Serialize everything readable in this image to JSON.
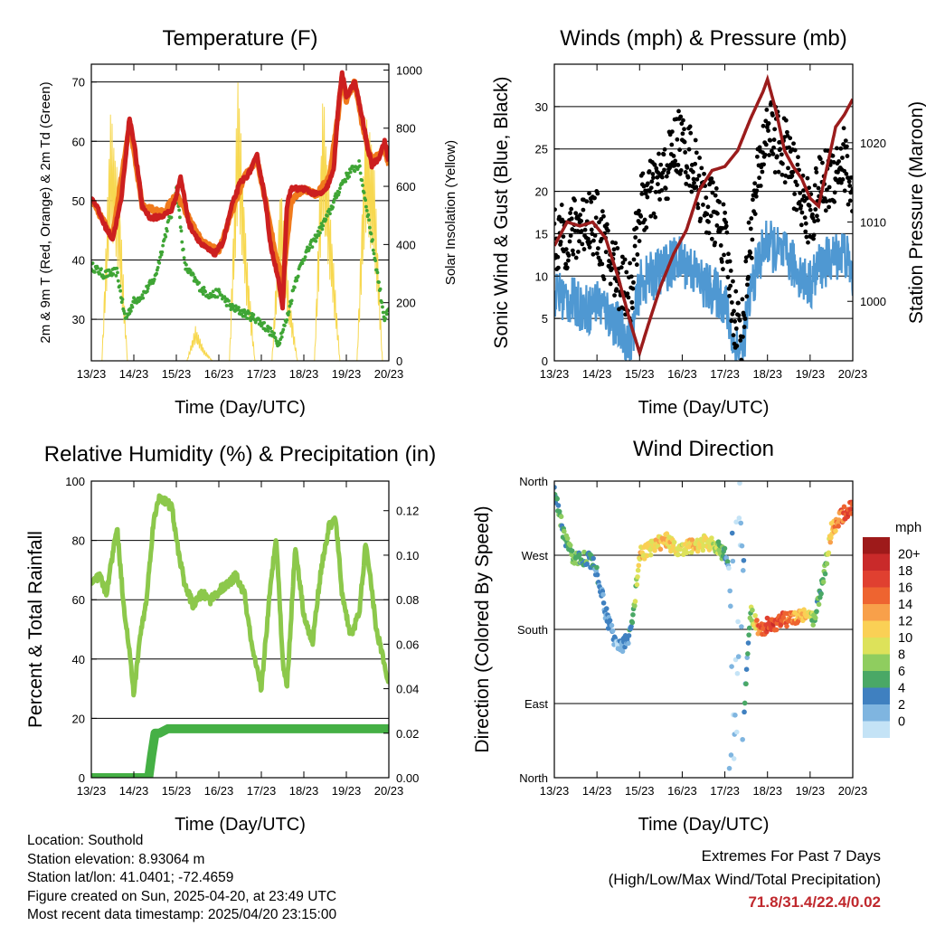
{
  "info": {
    "location": "Location: Southold",
    "elevation": "Station elevation: 8.93064 m",
    "latlon": "Station lat/lon: 41.0401; -72.4659",
    "created": "Figure created on Sun, 2025-04-20, at 23:49 UTC",
    "recent": "Most recent data timestamp: 2025/04/20 23:15:00"
  },
  "extremes": {
    "title": "Extremes For Past 7 Days",
    "subtitle": "(High/Low/Max Wind/Total Precipitation)",
    "values": "71.8/31.4/22.4/0.02"
  },
  "chart_data": [
    {
      "type": "line",
      "title": "Temperature (F)",
      "xlabel": "Time (Day/UTC)",
      "ylabel": "2m & 9m T (Red, Orange) & 2m Td (Green)",
      "ylabel_right": "Solar Insolation (Yellow)",
      "x_ticks": [
        "13/23",
        "14/23",
        "15/23",
        "16/23",
        "17/23",
        "18/23",
        "19/23",
        "20/23"
      ],
      "ylim": [
        23,
        73
      ],
      "y_ticks": [
        30,
        40,
        50,
        60,
        70
      ],
      "ylim_right": [
        0,
        1020
      ],
      "y_ticks_right": [
        0,
        200,
        400,
        600,
        800,
        1000
      ],
      "grid": "horizontal",
      "series": [
        {
          "name": "2m T",
          "color": "#cc1f1f",
          "x": [
            0,
            0.1,
            0.3,
            0.5,
            0.7,
            0.9,
            1.0,
            1.2,
            1.4,
            1.7,
            1.9,
            2.0,
            2.1,
            2.3,
            2.6,
            2.9,
            3.1,
            3.3,
            3.5,
            3.7,
            3.9,
            4.1,
            4.2,
            4.4,
            4.5,
            4.6,
            4.7,
            5.0,
            5.3,
            5.5,
            5.7,
            5.8,
            5.9,
            6.0,
            6.2,
            6.4,
            6.5,
            6.6,
            6.75,
            6.9,
            7.0
          ],
          "y": [
            50.5,
            49.5,
            46,
            43.5,
            50,
            64,
            60,
            49,
            47,
            47.5,
            48.5,
            51,
            54,
            46,
            42.5,
            41,
            43,
            49,
            53,
            54.5,
            57.5,
            50,
            43,
            37,
            31.5,
            49,
            52,
            52,
            51,
            51.5,
            55,
            65,
            71.5,
            67.5,
            70,
            63,
            59,
            56,
            57,
            60,
            56.5
          ]
        },
        {
          "name": "9m T",
          "color": "#f07a1c",
          "x": [
            0,
            0.5,
            0.9,
            1.2,
            1.7,
            2.0,
            2.3,
            2.6,
            3.0,
            3.3,
            3.6,
            3.9,
            4.1,
            4.3,
            4.5,
            4.7,
            5.0,
            5.3,
            5.6,
            5.8,
            5.9,
            6.0,
            6.2,
            6.4,
            6.6,
            6.9,
            7.0
          ],
          "y": [
            50,
            44,
            63,
            49,
            48,
            51,
            47,
            43,
            41.5,
            48,
            54,
            57,
            50,
            42,
            36,
            50,
            52,
            51,
            54,
            64,
            71,
            67,
            70,
            62,
            56.5,
            59,
            56
          ]
        },
        {
          "name": "2m Td",
          "color": "#3fa535",
          "x": [
            0,
            0.3,
            0.6,
            0.8,
            1.0,
            1.2,
            1.5,
            1.8,
            1.9,
            2.0,
            2.2,
            2.4,
            2.6,
            2.8,
            3.0,
            3.3,
            3.6,
            3.9,
            4.2,
            4.4,
            4.6,
            4.8,
            5.0,
            5.3,
            5.6,
            5.9,
            6.1,
            6.3,
            6.4,
            6.5,
            6.7,
            6.9,
            7.0
          ],
          "y": [
            39,
            37.5,
            38,
            30,
            33,
            34,
            37,
            46,
            48,
            52.5,
            39,
            37,
            35,
            34,
            34.5,
            32,
            31,
            30,
            28,
            26,
            30,
            36.5,
            40.5,
            44,
            48,
            53,
            55,
            56,
            52,
            48,
            39,
            30,
            31.5
          ]
        }
      ],
      "series_right": [
        {
          "name": "Solar Insolation",
          "color": "#f7d850",
          "x": [
            0,
            0.25,
            0.45,
            0.65,
            0.85,
            1.25,
            1.45,
            1.65,
            1.85,
            2.25,
            2.45,
            2.65,
            2.85,
            3.25,
            3.45,
            3.65,
            3.85,
            4.25,
            4.45,
            4.65,
            4.85,
            5.25,
            5.45,
            5.65,
            5.85,
            6.25,
            6.45,
            6.65,
            6.85,
            7.0
          ],
          "y": [
            0,
            0,
            870,
            600,
            0,
            0,
            0,
            0,
            0,
            0,
            120,
            40,
            0,
            0,
            1000,
            380,
            0,
            0,
            620,
            240,
            0,
            0,
            950,
            450,
            0,
            0,
            880,
            700,
            0,
            0
          ]
        }
      ]
    },
    {
      "type": "scatter",
      "title": "Winds (mph) & Pressure (mb)",
      "xlabel": "Time (Day/UTC)",
      "ylabel": "Sonic Wind & Gust (Blue, Black)",
      "ylabel_right": "Station Pressure (Maroon)",
      "x_ticks": [
        "13/23",
        "14/23",
        "15/23",
        "16/23",
        "17/23",
        "18/23",
        "19/23",
        "20/23"
      ],
      "ylim": [
        0,
        35
      ],
      "y_ticks": [
        0,
        5,
        10,
        15,
        20,
        25,
        30
      ],
      "ylim_right": [
        992.5,
        1029.9
      ],
      "y_ticks_right": [
        1000,
        1010,
        1020
      ],
      "grid": "horizontal",
      "series": [
        {
          "name": "Gust",
          "color": "#000000",
          "x": [
            0,
            0.4,
            0.8,
            1.0,
            1.2,
            1.5,
            1.8,
            2.0,
            2.3,
            2.6,
            2.9,
            3.2,
            3.5,
            3.8,
            4.0,
            4.2,
            4.4,
            4.6,
            4.8,
            5.0,
            5.2,
            5.5,
            5.8,
            6.0,
            6.2,
            6.5,
            6.8,
            7.0
          ],
          "y": [
            14,
            15,
            17,
            16,
            13,
            10,
            8,
            18,
            20,
            22,
            26,
            24,
            19,
            17,
            14,
            6,
            3,
            15,
            22,
            28,
            26,
            24,
            19,
            17,
            20,
            22,
            24,
            19
          ]
        },
        {
          "name": "Wind",
          "color": "#4f98d2",
          "x": [
            0,
            0.4,
            0.8,
            1.0,
            1.2,
            1.5,
            1.8,
            2.0,
            2.3,
            2.6,
            2.9,
            3.2,
            3.5,
            3.8,
            4.0,
            4.2,
            4.4,
            4.6,
            4.8,
            5.0,
            5.2,
            5.5,
            5.8,
            6.0,
            6.2,
            6.5,
            6.8,
            7.0
          ],
          "y": [
            8,
            7,
            6,
            7,
            6,
            4,
            2,
            9,
            10,
            11,
            12,
            11,
            9,
            8,
            7,
            2,
            1,
            8,
            12,
            14,
            13,
            12,
            10,
            9,
            11,
            12,
            13,
            10
          ]
        }
      ],
      "series_right": [
        {
          "name": "Station Pressure",
          "color": "#9b1c1c",
          "x": [
            0,
            0.3,
            0.6,
            0.9,
            1.2,
            1.5,
            1.8,
            2.0,
            2.2,
            2.5,
            2.8,
            3.1,
            3.4,
            3.7,
            4.0,
            4.3,
            4.6,
            4.9,
            5.0,
            5.2,
            5.4,
            5.6,
            5.8,
            6.0,
            6.2,
            6.4,
            6.6,
            6.8,
            7.0
          ],
          "y": [
            1007,
            1010,
            1009.5,
            1010,
            1008,
            1003,
            997,
            993.5,
            997,
            1002,
            1006,
            1009,
            1014,
            1016.5,
            1017,
            1019,
            1023,
            1026.5,
            1028,
            1024,
            1019,
            1017,
            1015.5,
            1013,
            1012,
            1017,
            1022,
            1023.5,
            1025.5
          ]
        }
      ]
    },
    {
      "type": "line",
      "title": "Relative Humidity (%) & Precipitation (in)",
      "xlabel": "Time (Day/UTC)",
      "ylabel": "Percent & Total Rainfall",
      "x_ticks": [
        "13/23",
        "14/23",
        "15/23",
        "16/23",
        "17/23",
        "18/23",
        "19/23",
        "20/23"
      ],
      "ylim": [
        0,
        100
      ],
      "y_ticks": [
        0,
        20,
        40,
        60,
        80,
        100
      ],
      "ylim_right": [
        0,
        0.1333
      ],
      "y_ticks_right": [
        "0.00",
        "0.02",
        "0.04",
        "0.06",
        "0.08",
        "0.10",
        "0.12"
      ],
      "grid": "horizontal",
      "series": [
        {
          "name": "Relative Humidity",
          "color": "#8cc84b",
          "x": [
            0,
            0.2,
            0.35,
            0.5,
            0.6,
            0.75,
            0.9,
            1.0,
            1.15,
            1.3,
            1.45,
            1.6,
            1.9,
            2.0,
            2.2,
            2.4,
            2.6,
            2.8,
            3.0,
            3.2,
            3.4,
            3.6,
            3.8,
            4.0,
            4.2,
            4.35,
            4.5,
            4.6,
            4.8,
            5.0,
            5.2,
            5.4,
            5.6,
            5.75,
            5.9,
            6.1,
            6.3,
            6.45,
            6.55,
            6.7,
            6.85,
            6.95
          ],
          "y": [
            65,
            68,
            62,
            75,
            85,
            60,
            42,
            28,
            48,
            60,
            85,
            95,
            91,
            80,
            65,
            58,
            62,
            60,
            63,
            65,
            68,
            62,
            42,
            30,
            62,
            82,
            40,
            30,
            78,
            55,
            45,
            70,
            85,
            87,
            62,
            48,
            55,
            78,
            70,
            50,
            42,
            33
          ]
        },
        {
          "name": "Total Precipitation",
          "color": "#45b045",
          "axis": "right",
          "x": [
            0,
            1.35,
            1.42,
            1.5,
            1.6,
            1.8,
            7.0
          ],
          "y": [
            0,
            0,
            0.01,
            0.02,
            0.02,
            0.022,
            0.022
          ]
        }
      ]
    },
    {
      "type": "scatter",
      "title": "Wind Direction",
      "xlabel": "Time (Day/UTC)",
      "ylabel": "Direction (Colored By Speed)",
      "x_ticks": [
        "13/23",
        "14/23",
        "15/23",
        "16/23",
        "17/23",
        "18/23",
        "19/23",
        "20/23"
      ],
      "y_ticks": [
        "North",
        "East",
        "South",
        "West",
        "North"
      ],
      "ylim": [
        0,
        360
      ],
      "grid": "horizontal",
      "colorbar": {
        "title": "mph",
        "labels": [
          "20+",
          "18",
          "16",
          "14",
          "12",
          "10",
          "8",
          "6",
          "4",
          "2",
          "0"
        ],
        "colors": [
          "#9e1a1a",
          "#c92a2a",
          "#e04030",
          "#ee6430",
          "#f8a04a",
          "#fad055",
          "#dde25a",
          "#8fcd5f",
          "#4aa866",
          "#3f80c0",
          "#7fb5e0",
          "#c4e3f6"
        ]
      },
      "series": [
        {
          "name": "Direction",
          "x": [
            0,
            0.2,
            0.4,
            0.6,
            0.8,
            1.0,
            1.2,
            1.4,
            1.6,
            1.8,
            2.0,
            2.3,
            2.6,
            2.9,
            3.2,
            3.5,
            3.8,
            4.0,
            4.1,
            4.2,
            4.3,
            4.4,
            4.6,
            4.8,
            5.0,
            5.3,
            5.6,
            5.9,
            6.1,
            6.3,
            6.5,
            6.7,
            6.9,
            7.0
          ],
          "y": [
            345,
            300,
            270,
            265,
            268,
            250,
            200,
            170,
            160,
            175,
            270,
            280,
            290,
            275,
            280,
            285,
            280,
            270,
            250,
            200,
            120,
            40,
            200,
            180,
            185,
            190,
            195,
            200,
            190,
            240,
            300,
            315,
            325,
            330
          ],
          "speed": [
            6,
            7,
            8,
            7,
            6,
            5,
            4,
            3,
            4,
            5,
            13,
            12,
            14,
            11,
            13,
            12,
            10,
            6,
            3,
            2,
            1,
            2,
            8,
            17,
            19,
            18,
            16,
            14,
            8,
            6,
            14,
            17,
            19,
            16
          ]
        }
      ]
    }
  ]
}
